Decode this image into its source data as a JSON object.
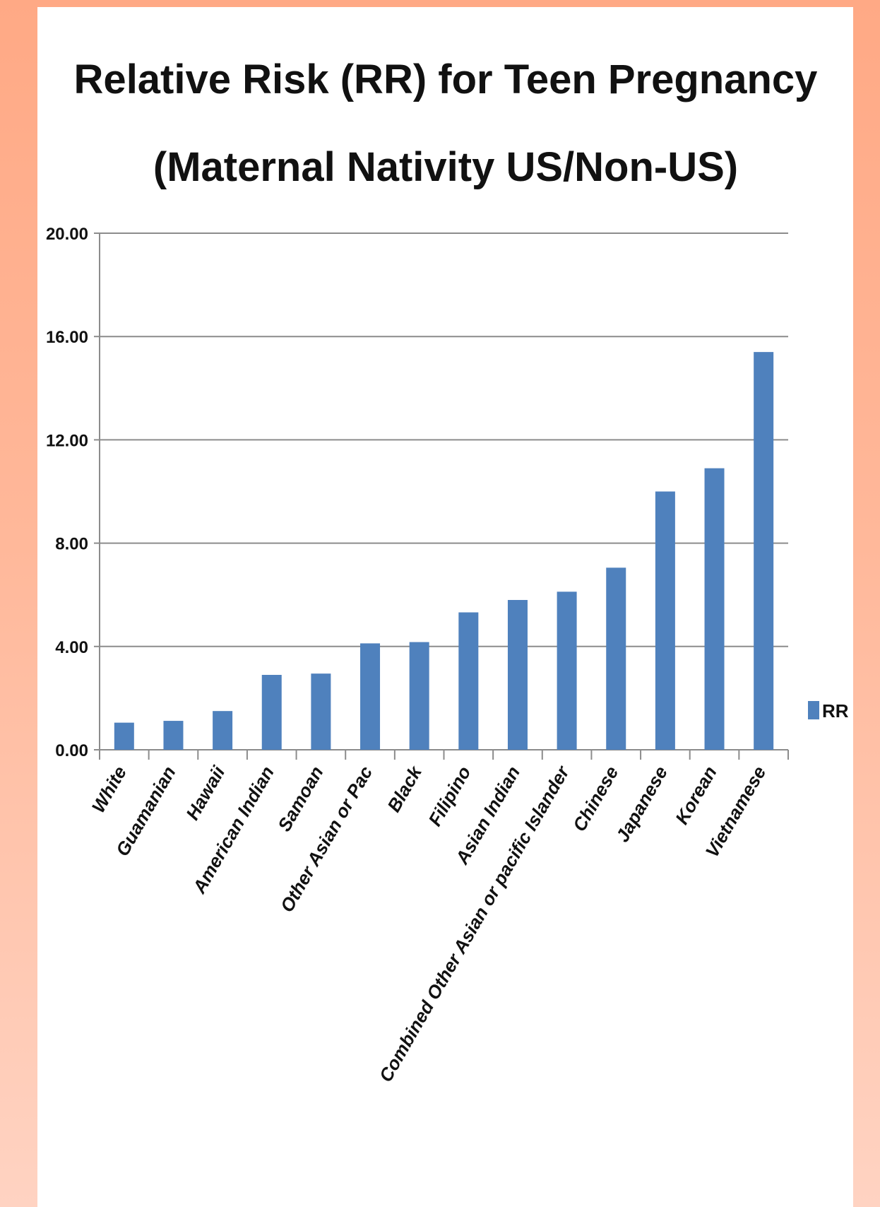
{
  "chart_data": {
    "type": "bar",
    "title_lines": [
      "Relative Risk (RR) for Teen Pregnancy",
      "(Maternal Nativity US/Non-US)"
    ],
    "categories": [
      "White",
      "Guamanian",
      "Hawaii",
      "American Indian",
      "Samoan",
      "Other Asian or Pac",
      "Black",
      "Filipino",
      "Asian Indian",
      "Combined Other Asian or pacific Islander",
      "Chinese",
      "Japanese",
      "Korean",
      "Vietnamese"
    ],
    "series": [
      {
        "name": "RR",
        "color": "#4f81bd",
        "values": [
          1.05,
          1.12,
          1.5,
          2.9,
          2.95,
          4.12,
          4.17,
          5.32,
          5.8,
          6.12,
          7.05,
          10.0,
          10.9,
          15.4
        ]
      }
    ],
    "yticks": [
      "0.00",
      "4.00",
      "8.00",
      "12.00",
      "16.00",
      "20.00"
    ],
    "ylim": [
      0,
      20
    ],
    "grid": true,
    "legend": "right",
    "colors": {
      "background": "#ffa985",
      "panel": "#ffffff",
      "bar": "#4f81bd",
      "gridline": "#8c8c8c"
    }
  }
}
